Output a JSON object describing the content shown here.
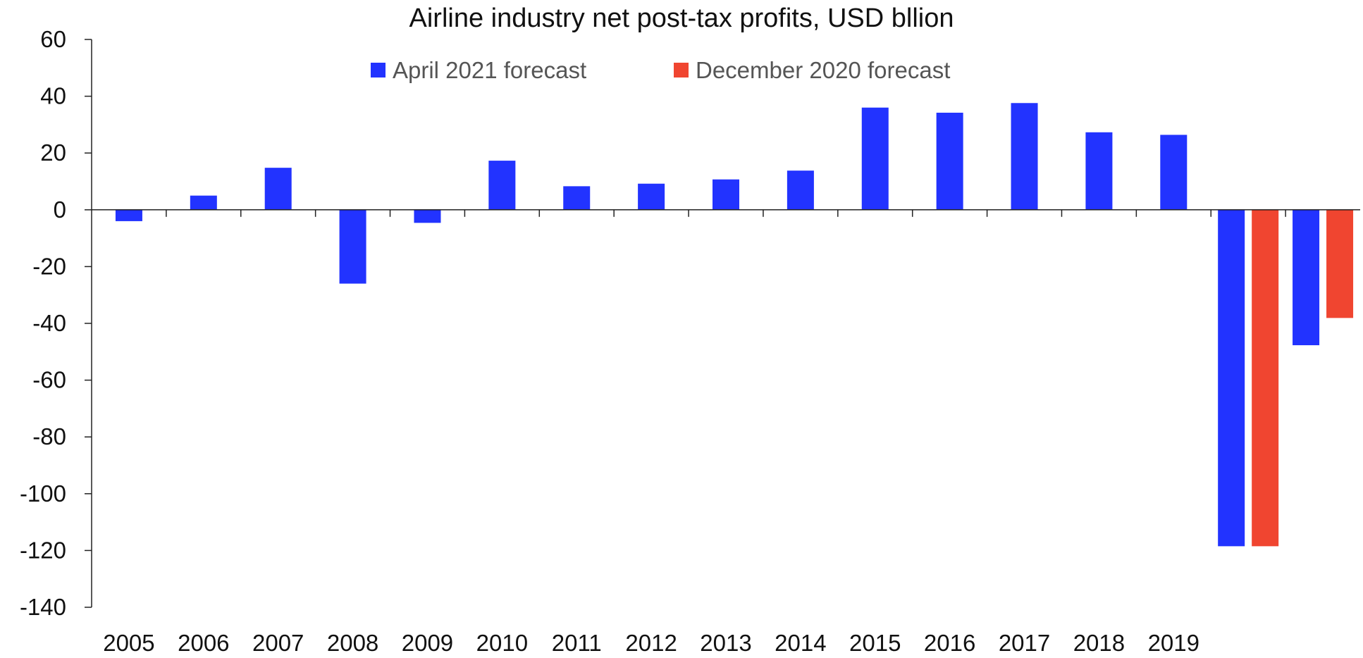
{
  "chart_data": {
    "type": "bar",
    "title": "Airline industry net post-tax profits, USD bllion",
    "xlabel": "",
    "ylabel": "",
    "ylim": [
      -140,
      60
    ],
    "yticks": [
      60,
      40,
      20,
      0,
      -20,
      -40,
      -60,
      -80,
      -100,
      -120,
      -140
    ],
    "grid": false,
    "legend_position": "top",
    "categories": [
      "2005",
      "2006",
      "2007",
      "2008",
      "2009",
      "2010",
      "2011",
      "2012",
      "2013",
      "2014",
      "2015",
      "2016",
      "2017",
      "2018",
      "2019",
      "",
      ""
    ],
    "series": [
      {
        "name": "April 2021 forecast",
        "color": "#2233ff",
        "values": [
          -4,
          5,
          14.8,
          -26,
          -4.6,
          17.3,
          8.3,
          9.2,
          10.7,
          13.8,
          36,
          34.2,
          37.6,
          27.3,
          26.4,
          -118.5,
          -47.7
        ]
      },
      {
        "name": "December 2020 forecast",
        "color": "#f04530",
        "values": [
          null,
          null,
          null,
          null,
          null,
          null,
          null,
          null,
          null,
          null,
          null,
          null,
          null,
          null,
          null,
          -118.5,
          -38.1
        ]
      }
    ]
  }
}
